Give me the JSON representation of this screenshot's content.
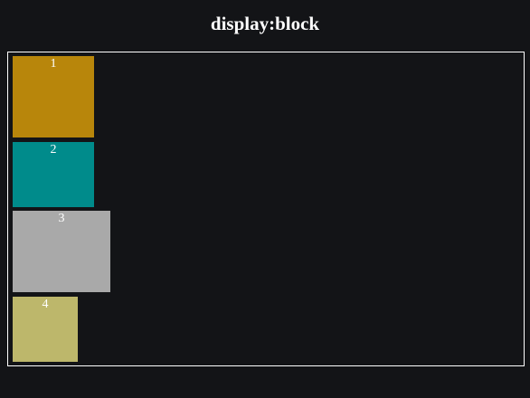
{
  "header": {
    "title": "display:block"
  },
  "boxes": [
    {
      "label": "1",
      "color": "#b8860b"
    },
    {
      "label": "2",
      "color": "#008b8b"
    },
    {
      "label": "3",
      "color": "#a9a9a9"
    },
    {
      "label": "4",
      "color": "#bdb76b"
    }
  ],
  "colors": {
    "background": "#131417",
    "border": "#ffffff",
    "text": "#ffffff"
  }
}
